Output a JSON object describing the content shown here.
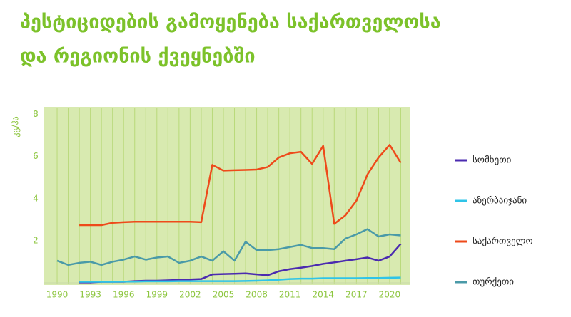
{
  "chart_data": {
    "type": "line",
    "title": [
      "პესტიციდების გამოყენება საქართველოსა",
      "და რეგიონის ქვეყნებში"
    ],
    "y_label": "კგ/ჰა",
    "x": [
      1990,
      1991,
      1992,
      1993,
      1994,
      1995,
      1996,
      1997,
      1998,
      1999,
      2000,
      2001,
      2002,
      2003,
      2004,
      2005,
      2006,
      2007,
      2008,
      2009,
      2010,
      2011,
      2012,
      2013,
      2014,
      2015,
      2016,
      2017,
      2018,
      2019,
      2020,
      2021
    ],
    "xlim": [
      1989,
      2022
    ],
    "xticks": [
      1990,
      1993,
      1996,
      1999,
      2002,
      2005,
      2008,
      2011,
      2014,
      2017,
      2020
    ],
    "ylim": [
      0,
      8
    ],
    "yticks": [
      2,
      4,
      6,
      8
    ],
    "legend": "right",
    "series": [
      {
        "name": "სომხეთი",
        "color": "#4b2bb0",
        "values": [
          null,
          null,
          0.02,
          0.02,
          0.05,
          0.05,
          0.05,
          0.08,
          0.1,
          0.1,
          0.12,
          0.14,
          0.16,
          0.18,
          0.4,
          0.42,
          0.43,
          0.45,
          0.4,
          0.36,
          0.55,
          0.65,
          0.72,
          0.8,
          0.9,
          0.97,
          1.05,
          1.12,
          1.2,
          1.05,
          1.25,
          1.85
        ]
      },
      {
        "name": "აზერბაიჯანი",
        "color": "#2fc4e8",
        "values": [
          null,
          null,
          0.05,
          0.05,
          0.05,
          0.05,
          0.06,
          0.06,
          0.07,
          0.07,
          0.07,
          0.08,
          0.08,
          0.08,
          0.08,
          0.08,
          0.08,
          0.09,
          0.1,
          0.12,
          0.15,
          0.18,
          0.2,
          0.2,
          0.22,
          0.22,
          0.22,
          0.22,
          0.23,
          0.23,
          0.24,
          0.25
        ]
      },
      {
        "name": "საქართველო",
        "color": "#ee4a1a",
        "values": [
          null,
          null,
          2.74,
          2.74,
          2.74,
          2.85,
          2.88,
          2.9,
          2.9,
          2.9,
          2.9,
          2.9,
          2.9,
          2.88,
          5.6,
          5.33,
          5.35,
          5.36,
          5.38,
          5.5,
          5.95,
          6.15,
          6.22,
          5.65,
          6.5,
          2.8,
          3.2,
          3.9,
          5.15,
          5.95,
          6.55,
          5.7
        ]
      },
      {
        "name": "თურქეთი",
        "color": "#4a9aa8",
        "values": [
          1.05,
          0.85,
          0.95,
          1.0,
          0.85,
          1.0,
          1.1,
          1.25,
          1.1,
          1.2,
          1.25,
          0.95,
          1.05,
          1.25,
          1.05,
          1.5,
          1.05,
          1.95,
          1.55,
          1.55,
          1.6,
          1.7,
          1.8,
          1.65,
          1.65,
          1.6,
          2.1,
          2.3,
          2.55,
          2.2,
          2.3,
          2.25
        ]
      }
    ]
  }
}
